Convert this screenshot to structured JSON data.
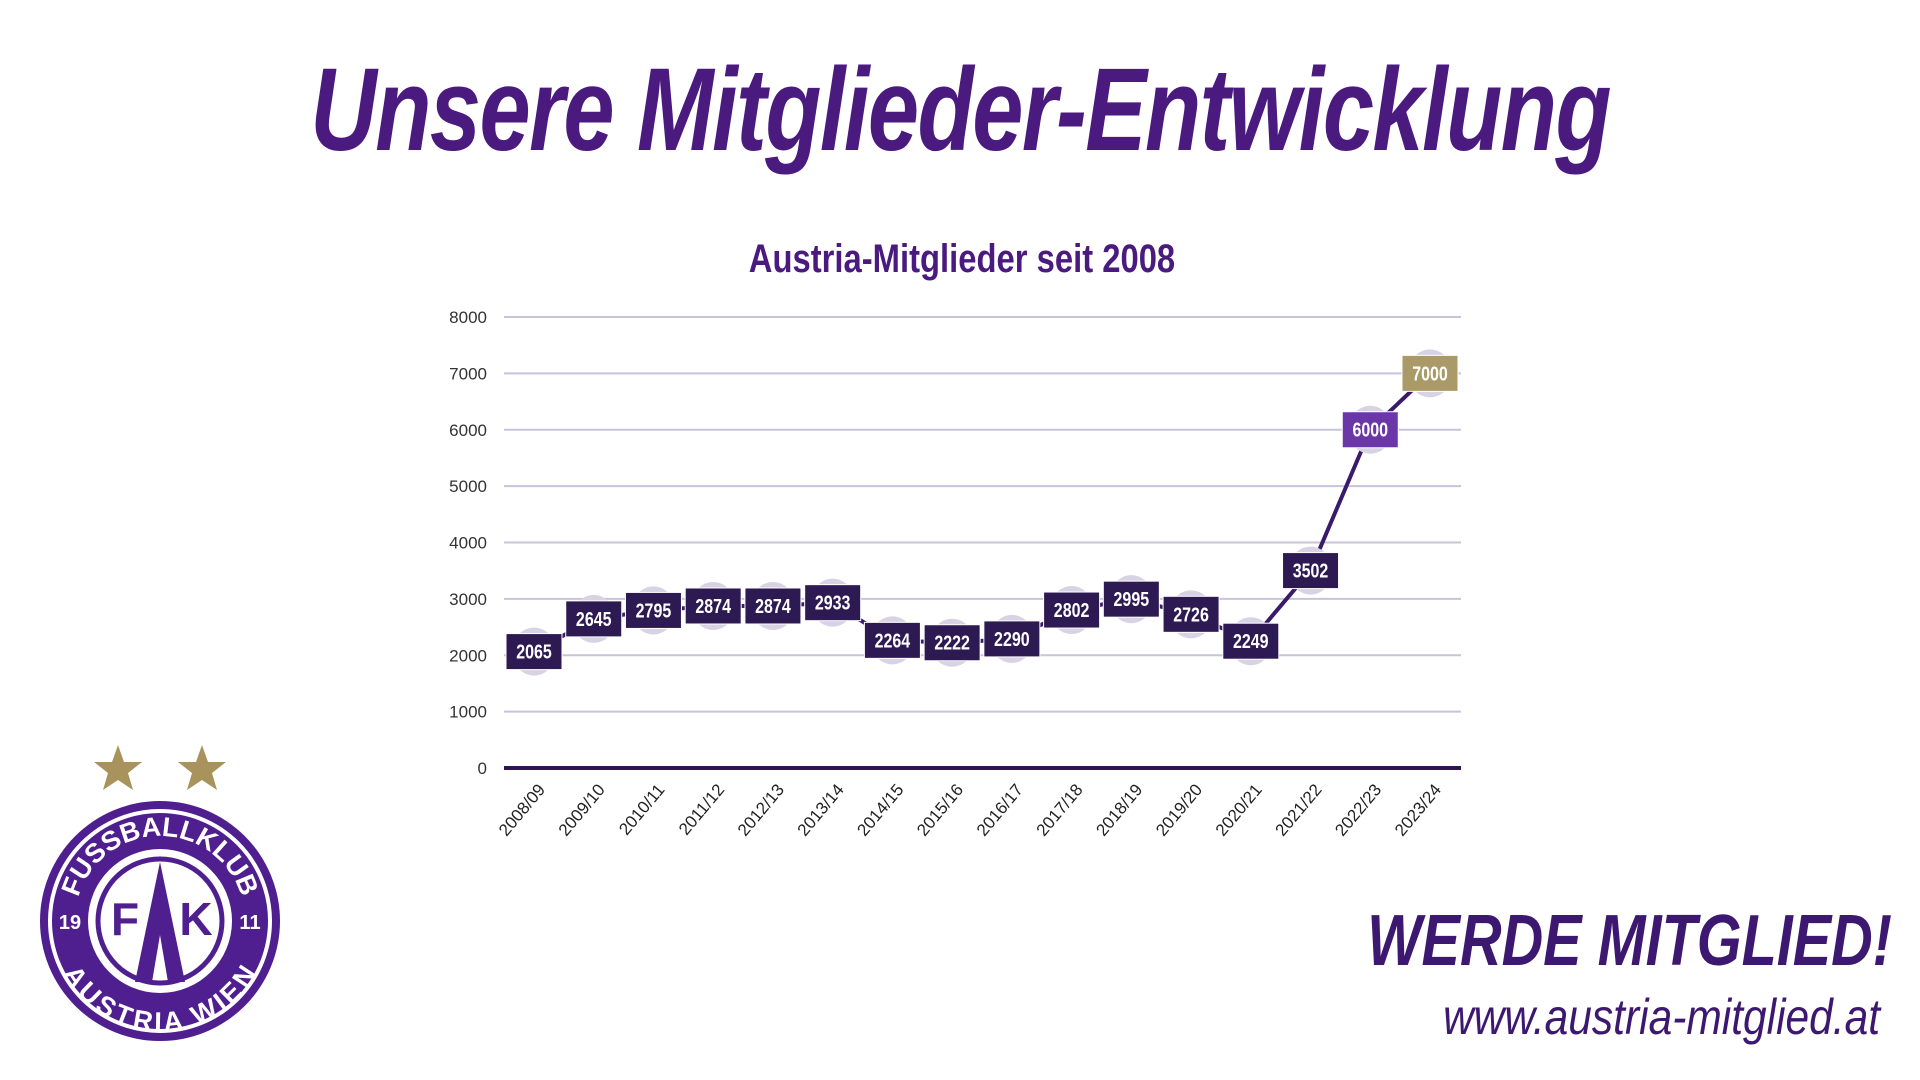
{
  "page": {
    "title": "Unsere Mitglieder-Entwicklung",
    "cta_heading": "WERDE MITGLIED!",
    "cta_url": "www.austria-mitglied.at"
  },
  "logo": {
    "top_text": "FUSSBALLKLUB",
    "bottom_text": "AUSTRIA WIEN",
    "year_left": "19",
    "year_right": "11",
    "monogram_left": "F",
    "monogram_center": "A",
    "monogram_right": "K",
    "stars": 2,
    "colors": {
      "purple": "#4f1f8f",
      "gold": "#a8935c"
    }
  },
  "chart_data": {
    "type": "line",
    "title": "Austria-Mitglieder seit 2008",
    "xlabel": "",
    "ylabel": "",
    "ylim": [
      0,
      8000
    ],
    "yticks": [
      0,
      1000,
      2000,
      3000,
      4000,
      5000,
      6000,
      7000,
      8000
    ],
    "grid": true,
    "legend": "none",
    "categories": [
      "2008/09",
      "2009/10",
      "2010/11",
      "2011/12",
      "2012/13",
      "2013/14",
      "2014/15",
      "2015/16",
      "2016/17",
      "2017/18",
      "2018/19",
      "2019/20",
      "2020/21",
      "2021/22",
      "2022/23",
      "2023/24"
    ],
    "values": [
      2065,
      2645,
      2795,
      2874,
      2874,
      2933,
      2264,
      2222,
      2290,
      2802,
      2995,
      2726,
      2249,
      3502,
      6000,
      7000
    ],
    "data_labels": [
      "2065",
      "2645",
      "2795",
      "2874",
      "2874",
      "2933",
      "2264",
      "2222",
      "2290",
      "2802",
      "2995",
      "2726",
      "2249",
      "3502",
      "6000",
      "7000"
    ],
    "colors": {
      "line": "#3a1a6a",
      "label_default": "#2e1a52",
      "label_2022_23": "#6b36a8",
      "label_2023_24": "#a99a68",
      "grid": "#c8c2da",
      "title": "#4a1a7f"
    }
  }
}
